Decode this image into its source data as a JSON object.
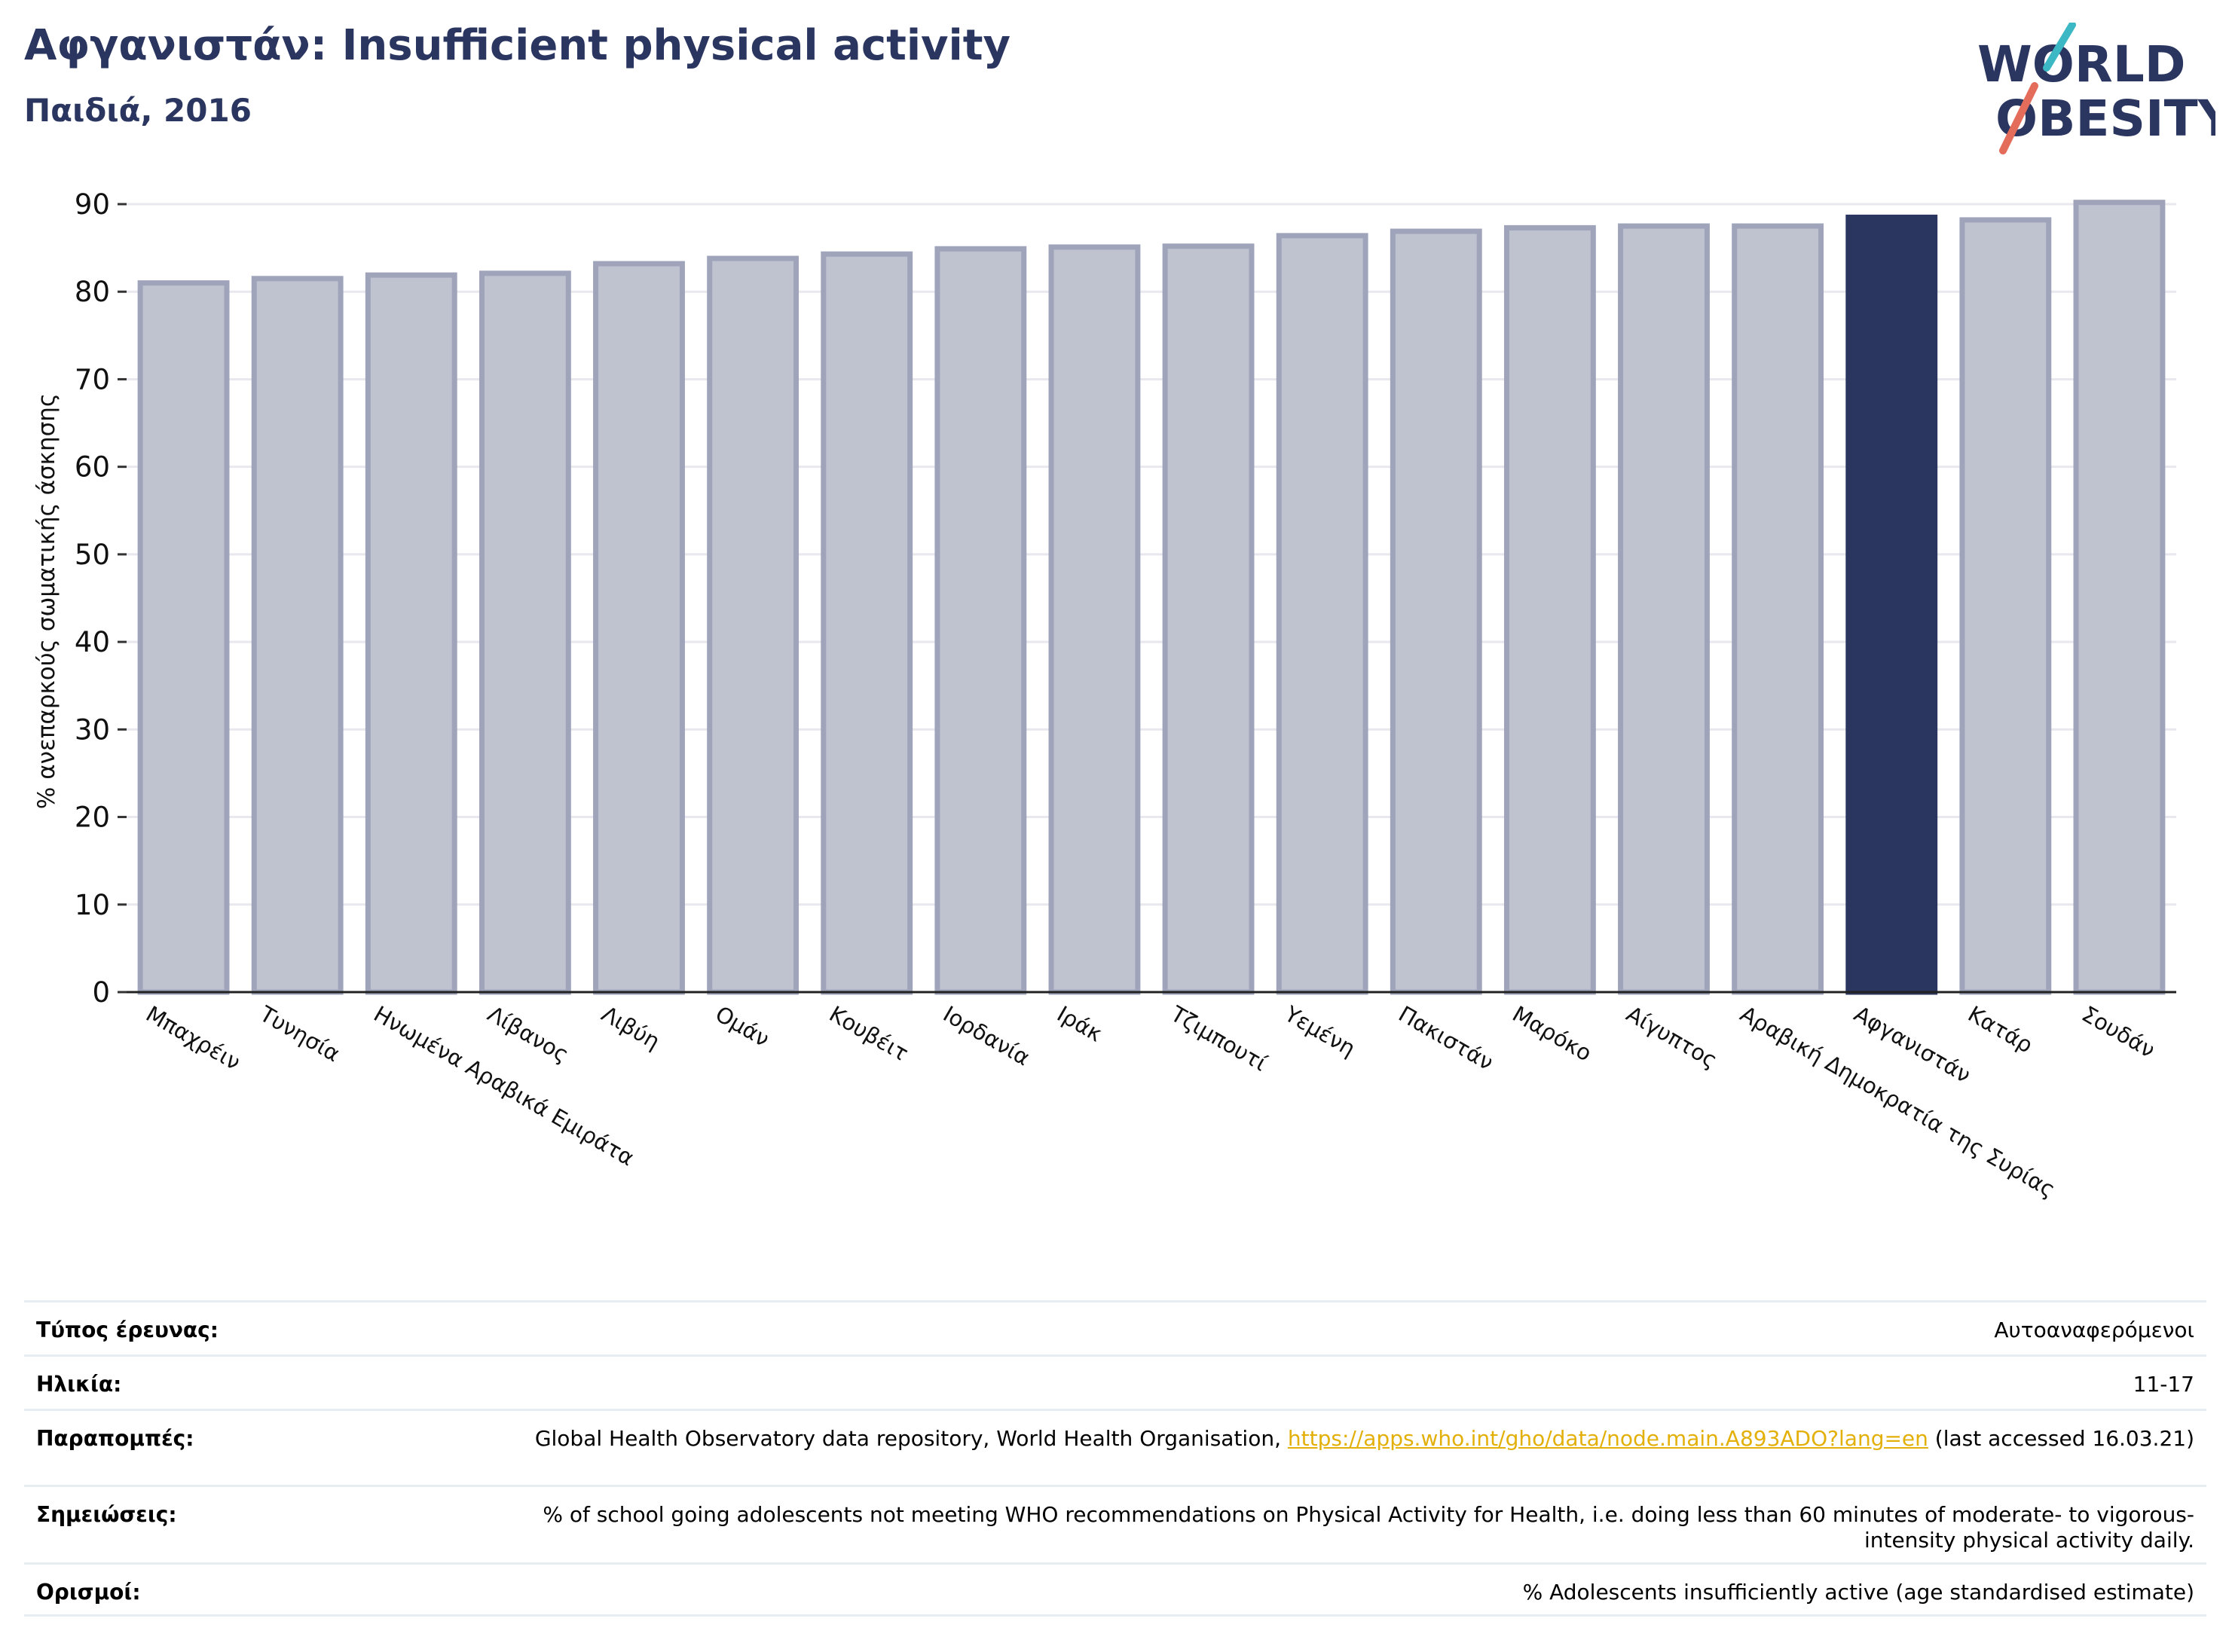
{
  "header": {
    "title": "Αφγανιστάν: Insufficient physical activity",
    "subtitle": "Παιδιά, 2016"
  },
  "logo": {
    "line1": "WORLD",
    "line2": "OBESITY"
  },
  "colors": {
    "highlight": "#2a3560",
    "bar_fill": "#bfc2cf",
    "bar_stroke": "#9fa4bb",
    "accent_teal": "#3bb8c3",
    "accent_coral": "#e46c5a",
    "link": "#e3b00a"
  },
  "chart_data": {
    "type": "bar",
    "title": "Αφγανιστάν: Insufficient physical activity",
    "subtitle": "Παιδιά, 2016",
    "xlabel": "",
    "ylabel": "% ανεπαρκούς σωματικής άσκησης",
    "ylim": [
      0,
      90
    ],
    "yticks": [
      0,
      10,
      20,
      30,
      40,
      50,
      60,
      70,
      80,
      90
    ],
    "grid": true,
    "highlight_category": "Αφγανιστάν",
    "categories": [
      "Μπαχρέιν",
      "Τυνησία",
      "Ηνωμένα Αραβικά Εμιράτα",
      "Λίβανος",
      "Λιβύη",
      "Ομάν",
      "Κουβέιτ",
      "Ιορδανία",
      "Ιράκ",
      "Τζιμπουτί",
      "Υεμένη",
      "Πακιστάν",
      "Μαρόκο",
      "Αίγυπτος",
      "Αραβική Δημοκρατία της Συρίας",
      "Αφγανιστάν",
      "Κατάρ",
      "Σουδάν"
    ],
    "values": [
      81.0,
      81.5,
      81.9,
      82.1,
      83.2,
      83.8,
      84.3,
      84.9,
      85.1,
      85.2,
      86.4,
      86.9,
      87.3,
      87.5,
      87.5,
      88.5,
      88.2,
      90.2
    ]
  },
  "info": {
    "rows": [
      {
        "label": "Τύπος έρευνας:",
        "value": "Αυτοαναφερόμενοι"
      },
      {
        "label": "Ηλικία:",
        "value": "11-17"
      },
      {
        "label": "Παραπομπές:",
        "value_prefix": "Global Health Observatory data repository, World Health Organisation, ",
        "link": "https://apps.who.int/gho/data/node.main.A893ADO?lang=en",
        "value_suffix": " (last accessed 16.03.21)"
      },
      {
        "label": "Σημειώσεις:",
        "value": "% of school going adolescents not meeting WHO recommendations on Physical Activity for Health, i.e. doing less than 60 minutes of moderate- to vigorous-intensity physical activity daily."
      },
      {
        "label": "Ορισμοί:",
        "value": "% Adolescents insufficiently active (age standardised estimate)"
      }
    ]
  }
}
